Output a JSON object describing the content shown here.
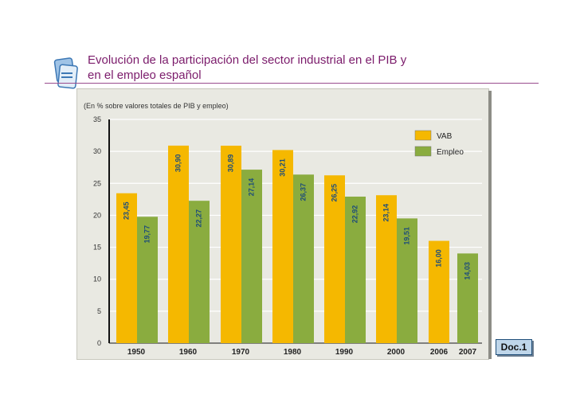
{
  "slide": {
    "title": "Evolución de la participación del sector industrial en el PIB y en el empleo español",
    "badge": "Doc.1"
  },
  "colors": {
    "vab": "#f5b800",
    "empleo": "#8aac3f",
    "title": "#7b1b6b",
    "bar_label": "#1f4e79"
  },
  "chart_data": {
    "type": "bar",
    "title": "(En % sobre valores totales de PIB y empleo)",
    "xlabel": "",
    "ylabel": "",
    "ylim": [
      0,
      35
    ],
    "yticks": [
      "0",
      "5",
      "10",
      "15",
      "20",
      "25",
      "30",
      "35"
    ],
    "grid": true,
    "legend": "top-right",
    "categories": [
      "1950",
      "1960",
      "1970",
      "1980",
      "1990",
      "2000",
      "2006",
      "2007"
    ],
    "series": [
      {
        "name": "VAB",
        "values": [
          23.45,
          30.9,
          30.89,
          30.21,
          26.25,
          23.14,
          16.0,
          null
        ],
        "labels": [
          "23,45",
          "30,90",
          "30,89",
          "30,21",
          "26,25",
          "23,14",
          "16,00",
          null
        ]
      },
      {
        "name": "Empleo",
        "values": [
          19.77,
          22.27,
          27.14,
          26.37,
          22.92,
          19.51,
          null,
          14.03
        ],
        "labels": [
          "19,77",
          "22,27",
          "27,14",
          "26,37",
          "22,92",
          "19,51",
          null,
          "14,03"
        ]
      }
    ]
  }
}
